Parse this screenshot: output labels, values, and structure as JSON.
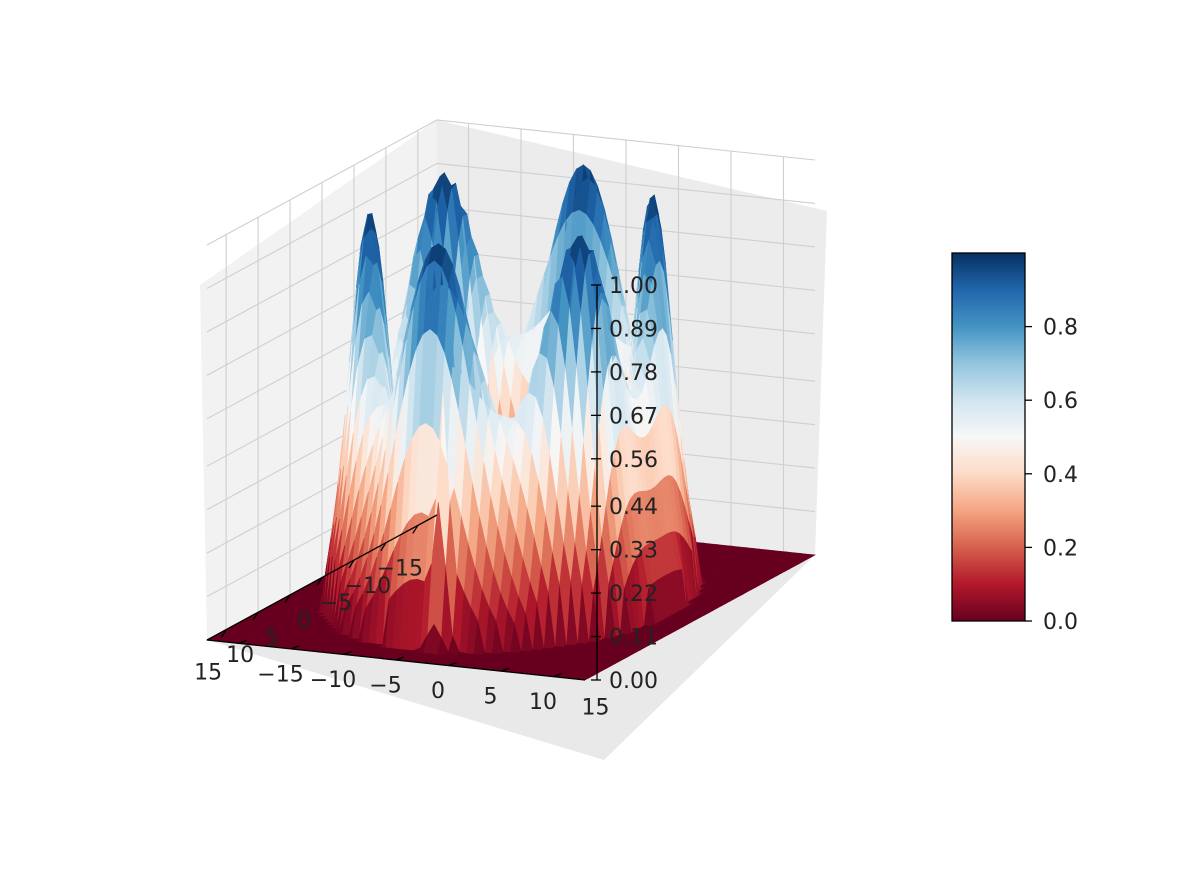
{
  "chart_data": {
    "type": "surface3d",
    "title": "",
    "xlabel": "",
    "ylabel": "",
    "zlabel": "",
    "xlim": [
      -18,
      18
    ],
    "ylim": [
      -18,
      18
    ],
    "zlim": [
      0,
      1
    ],
    "x_ticks": [
      "−15",
      "−10",
      "−5",
      "0",
      "5",
      "10",
      "15"
    ],
    "y_ticks": [
      "−15",
      "−10",
      "−5",
      "0",
      "5",
      "10",
      "15"
    ],
    "z_ticks": [
      "0.00",
      "0.11",
      "0.22",
      "0.33",
      "0.44",
      "0.56",
      "0.67",
      "0.78",
      "0.89",
      "1.00"
    ],
    "colormap": "RdBu",
    "colorbar": {
      "ticks": [
        "0.0",
        "0.2",
        "0.4",
        "0.6",
        "0.8"
      ],
      "range": [
        0,
        1
      ]
    },
    "surface": {
      "ring_radius": 11.5,
      "ring_peak": 1.0,
      "spikes": [
        {
          "x": 0.5,
          "y": -2.5,
          "height": 0.42
        },
        {
          "x": 8.0,
          "y": -3.0,
          "height": 0.47
        },
        {
          "x": 14.0,
          "y": 2.0,
          "height": 0.65
        }
      ]
    },
    "grid": true,
    "legend": "colorbar-right"
  },
  "colors": {
    "pane": "#f2f2f2",
    "grid": "#cfcfcf",
    "low": "#67001f",
    "mid": "#f7f7f7",
    "high": "#053061"
  }
}
